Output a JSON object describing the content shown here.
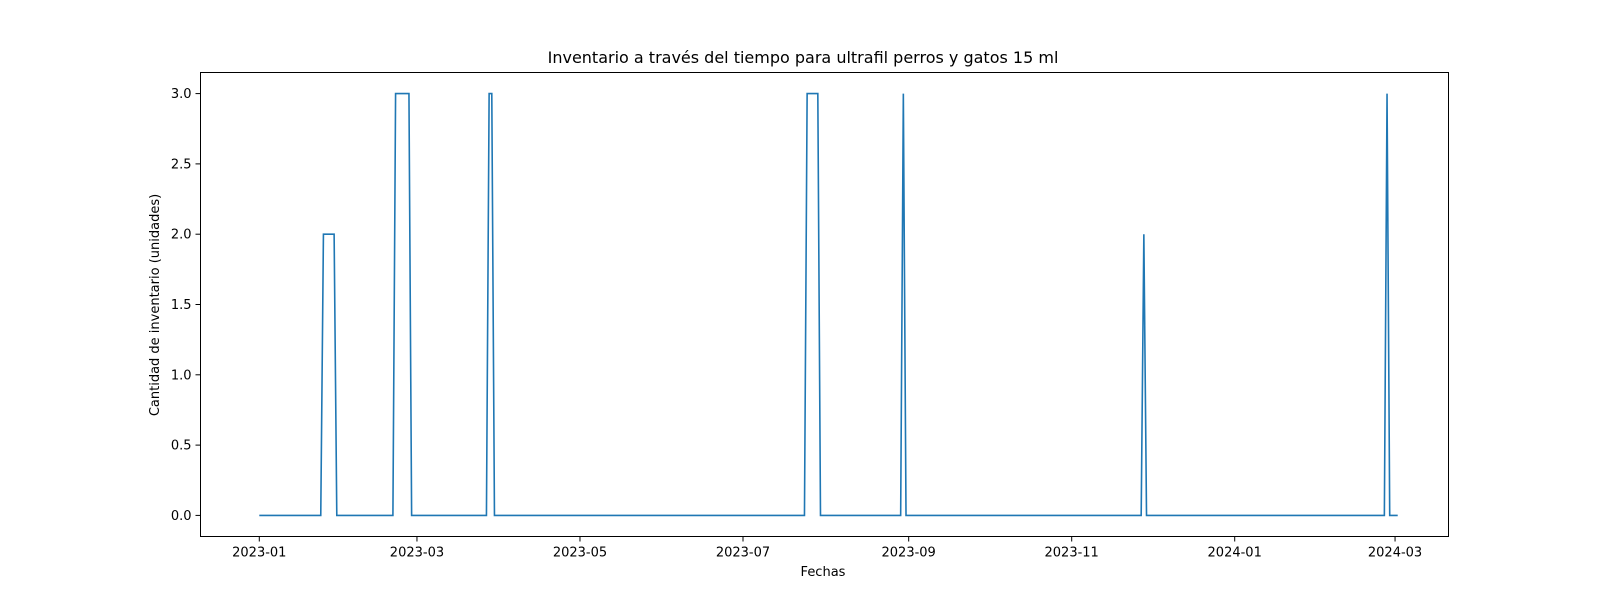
{
  "chart_data": {
    "type": "line",
    "title": "Inventario a través del tiempo para ultrafil perros y gatos 15 ml",
    "xlabel": "Fechas",
    "ylabel": "Cantidad de inventario (unidades)",
    "x_axis_type": "date",
    "xlim": [
      "2022-12-10",
      "2024-03-21"
    ],
    "ylim": [
      -0.15,
      3.15
    ],
    "x_ticks": [
      "2023-01",
      "2023-03",
      "2023-05",
      "2023-07",
      "2023-09",
      "2023-11",
      "2024-01",
      "2024-03"
    ],
    "x_tick_dates": [
      "2023-01-01",
      "2023-03-01",
      "2023-05-01",
      "2023-07-01",
      "2023-09-01",
      "2023-11-01",
      "2024-01-01",
      "2024-03-01"
    ],
    "y_ticks": [
      "0.0",
      "0.5",
      "1.0",
      "1.5",
      "2.0",
      "2.5",
      "3.0"
    ],
    "y_tick_values": [
      0,
      0.5,
      1.0,
      1.5,
      2.0,
      2.5,
      3.0
    ],
    "grid": false,
    "legend": false,
    "series": [
      {
        "color": "#1f77b4",
        "points": [
          [
            "2023-01-01",
            0
          ],
          [
            "2023-01-24",
            0
          ],
          [
            "2023-01-25",
            2
          ],
          [
            "2023-01-29",
            2
          ],
          [
            "2023-01-30",
            0
          ],
          [
            "2023-02-20",
            0
          ],
          [
            "2023-02-21",
            3
          ],
          [
            "2023-02-26",
            3
          ],
          [
            "2023-02-27",
            0
          ],
          [
            "2023-03-27",
            0
          ],
          [
            "2023-03-28",
            3
          ],
          [
            "2023-03-29",
            3
          ],
          [
            "2023-03-30",
            0
          ],
          [
            "2023-07-24",
            0
          ],
          [
            "2023-07-25",
            3
          ],
          [
            "2023-07-29",
            3
          ],
          [
            "2023-07-30",
            0
          ],
          [
            "2023-08-29",
            0
          ],
          [
            "2023-08-30",
            3
          ],
          [
            "2023-08-31",
            0
          ],
          [
            "2023-11-27",
            0
          ],
          [
            "2023-11-28",
            2
          ],
          [
            "2023-11-29",
            0
          ],
          [
            "2024-02-26",
            0
          ],
          [
            "2024-02-27",
            3
          ],
          [
            "2024-02-28",
            0
          ],
          [
            "2024-03-02",
            0
          ]
        ]
      }
    ]
  }
}
